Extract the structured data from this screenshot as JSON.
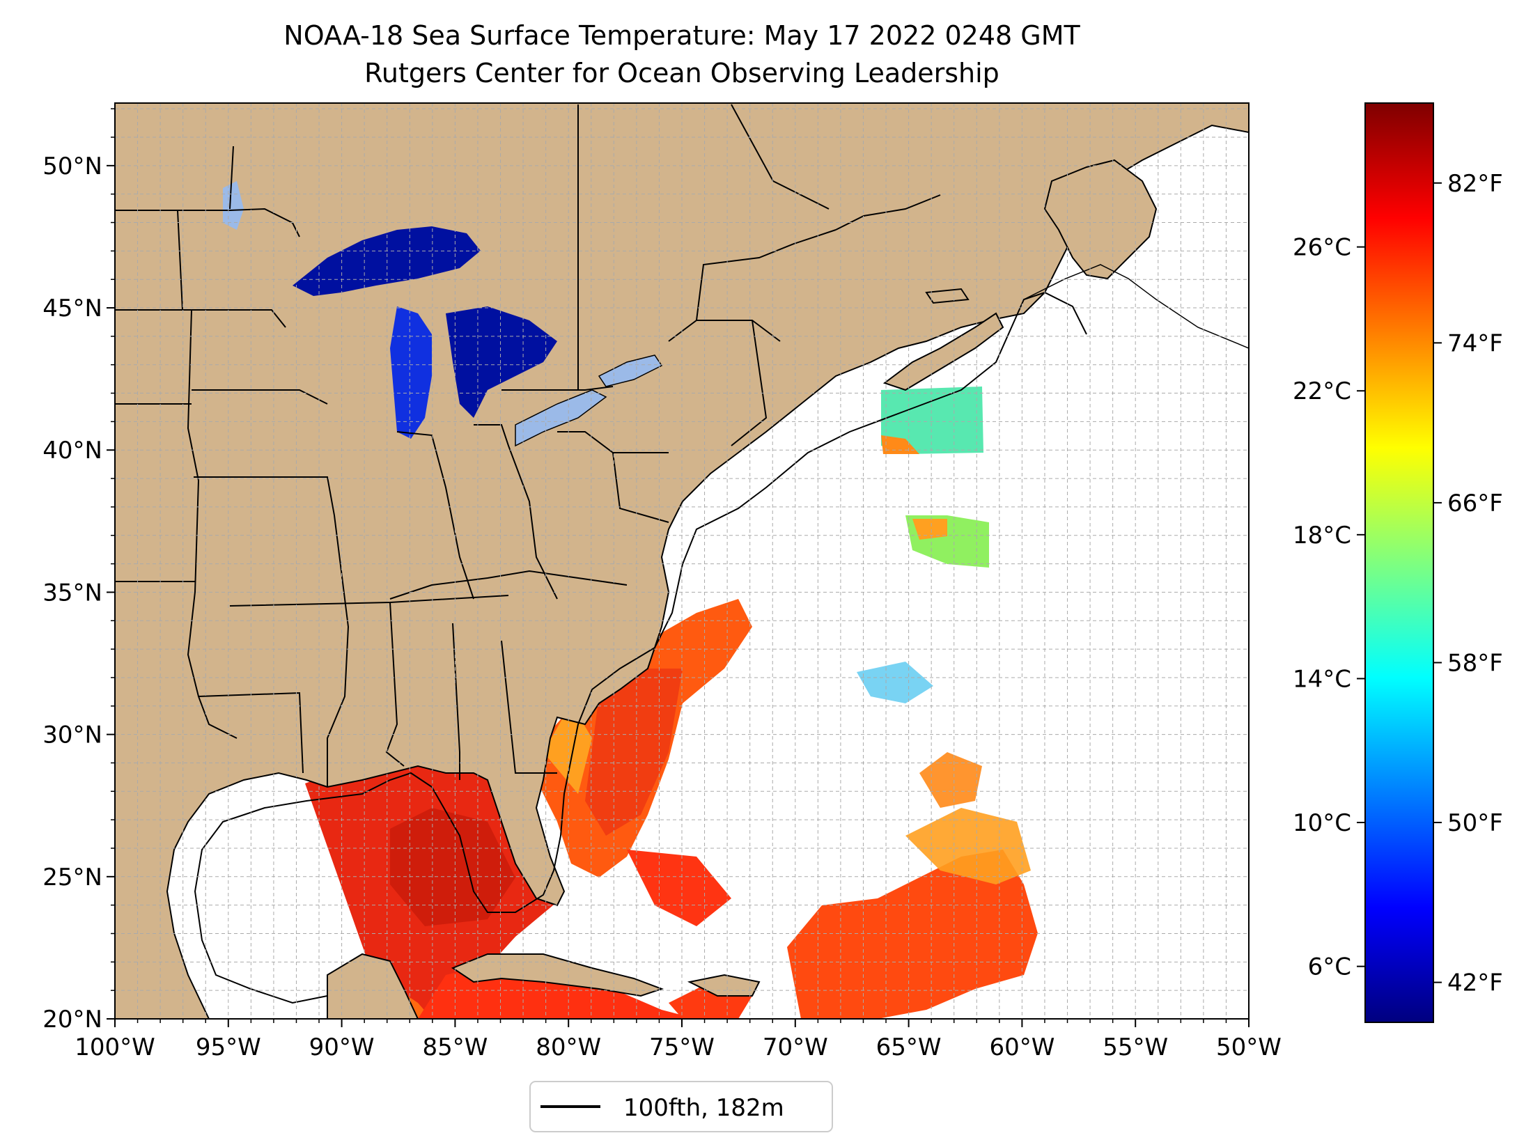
{
  "title": {
    "line1": "NOAA-18 Sea Surface Temperature: May 17 2022 0248 GMT",
    "line2": "Rutgers Center for Ocean Observing Leadership"
  },
  "map": {
    "extent": {
      "lon_min": -100,
      "lon_max": -50,
      "lat_min": 20,
      "lat_max": 52.2
    },
    "lon_ticks": [
      {
        "lon": -100,
        "label": "100°W"
      },
      {
        "lon": -95,
        "label": "95°W"
      },
      {
        "lon": -90,
        "label": "90°W"
      },
      {
        "lon": -85,
        "label": "85°W"
      },
      {
        "lon": -80,
        "label": "80°W"
      },
      {
        "lon": -75,
        "label": "75°W"
      },
      {
        "lon": -70,
        "label": "70°W"
      },
      {
        "lon": -65,
        "label": "65°W"
      },
      {
        "lon": -60,
        "label": "60°W"
      },
      {
        "lon": -55,
        "label": "55°W"
      },
      {
        "lon": -50,
        "label": "50°W"
      }
    ],
    "lat_ticks": [
      {
        "lat": 20,
        "label": "20°N"
      },
      {
        "lat": 25,
        "label": "25°N"
      },
      {
        "lat": 30,
        "label": "30°N"
      },
      {
        "lat": 35,
        "label": "35°N"
      },
      {
        "lat": 40,
        "label": "40°N"
      },
      {
        "lat": 45,
        "label": "45°N"
      },
      {
        "lat": 50,
        "label": "50°N"
      }
    ],
    "grid": true,
    "grid_step_deg": 1,
    "land_color": "#d2b48c",
    "lake_color": "#9bbae8",
    "ocean_color": "#ffffff"
  },
  "legend": {
    "entries": [
      {
        "label": "100fth, 182m",
        "color": "#000000"
      }
    ],
    "placement": "bottom-center"
  },
  "colorbar": {
    "colormap": "jet",
    "f_min": 40,
    "f_max": 86,
    "celsius_ticks": [
      "6°C",
      "10°C",
      "14°C",
      "18°C",
      "22°C",
      "26°C"
    ],
    "fahrenheit_ticks": [
      "42°F",
      "50°F",
      "58°F",
      "66°F",
      "74°F",
      "82°F"
    ],
    "jet_stops": [
      "#00007f",
      "#0000ff",
      "#007fff",
      "#00ffff",
      "#7fff7f",
      "#ffff00",
      "#ff7f00",
      "#ff0000",
      "#7f0000"
    ]
  }
}
